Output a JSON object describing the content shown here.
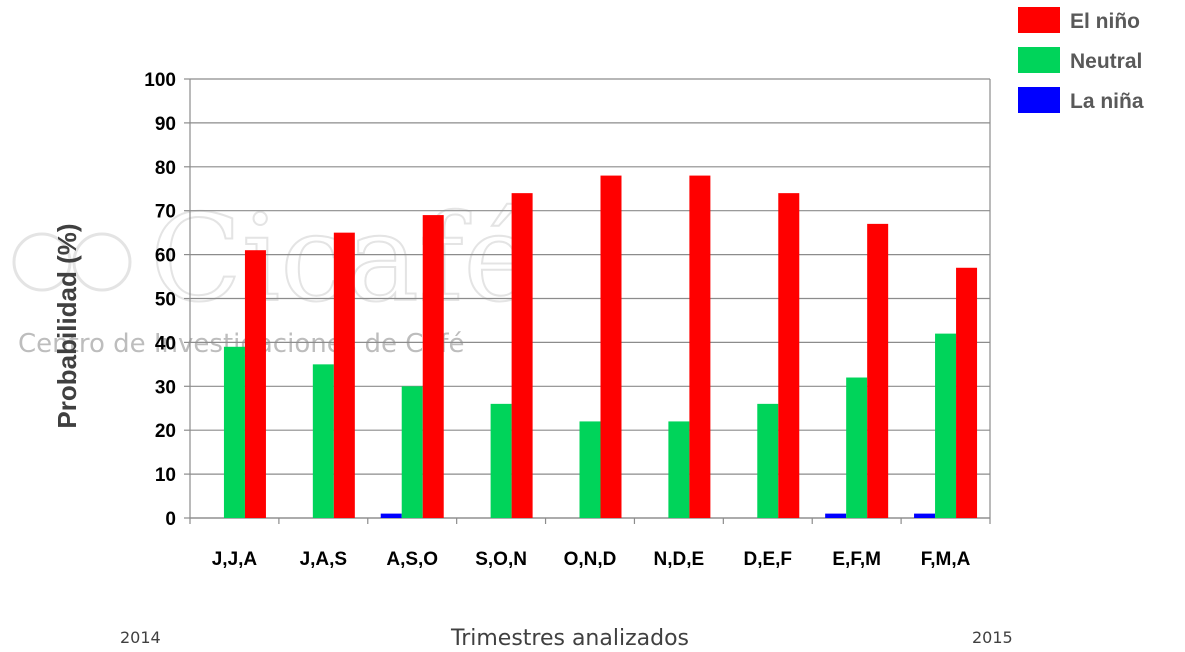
{
  "chart_data": {
    "type": "bar",
    "title": "",
    "ylabel": "Probabilidad (%)",
    "xlabel": "Trimestres analizados",
    "year_start": "2014",
    "year_end": "2015",
    "ylim": [
      0,
      100
    ],
    "yticks": [
      "0",
      "10",
      "20",
      "30",
      "40",
      "50",
      "60",
      "70",
      "80",
      "90",
      "100"
    ],
    "grid": true,
    "legend_position": "top-right",
    "categories": [
      "J,J,A",
      "J,A,S",
      "A,S,O",
      "S,O,N",
      "O,N,D",
      "N,D,E",
      "D,E,F",
      "E,F,M",
      "F,M,A"
    ],
    "series": [
      {
        "name": "La niña",
        "color": "#0000ff",
        "values": [
          0,
          0,
          1,
          0,
          0,
          0,
          0,
          1,
          1
        ]
      },
      {
        "name": "Neutral",
        "color": "#00d45a",
        "values": [
          39,
          35,
          30,
          26,
          22,
          22,
          26,
          32,
          42
        ]
      },
      {
        "name": "El niño",
        "color": "#ff0000",
        "values": [
          61,
          65,
          69,
          74,
          78,
          78,
          74,
          67,
          57
        ]
      }
    ],
    "legend_order": [
      2,
      1,
      0
    ]
  },
  "watermark": {
    "logo_text": "Cicafé",
    "subtitle": "Centro de Investigaciones de Café"
  }
}
